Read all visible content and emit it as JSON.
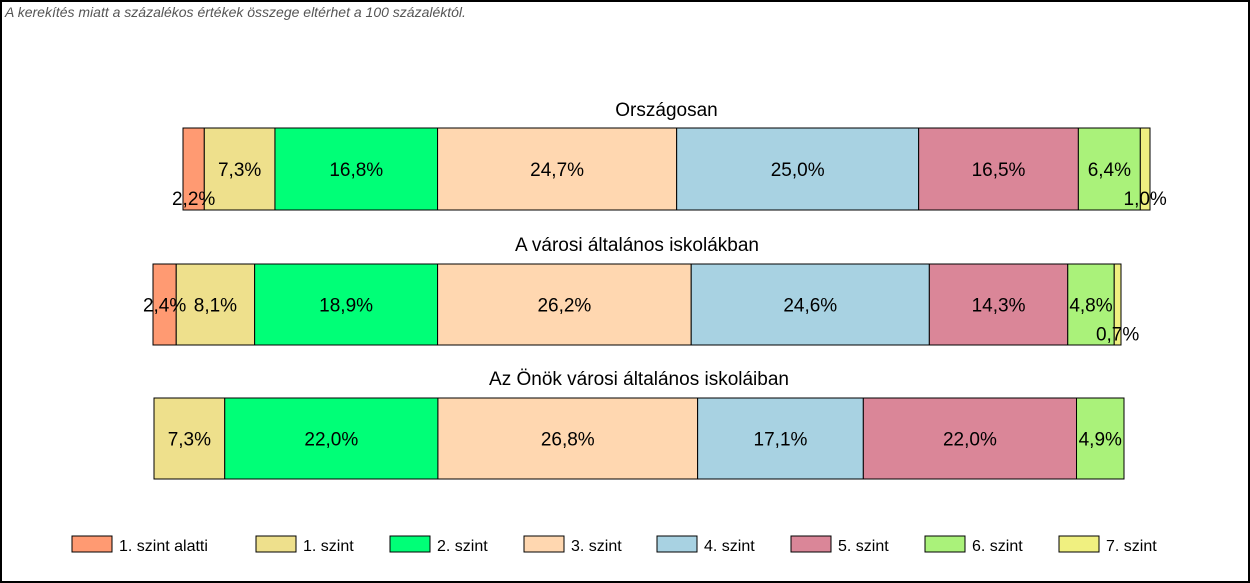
{
  "note": "A kerekítés miatt a  százalékos értékek összege eltérhet a 100 százaléktól.",
  "chart_data": {
    "type": "bar",
    "orientation": "horizontal-stacked-100",
    "categories": [
      "Országosan",
      "A városi általános iskolákban",
      "Az Önök városi általános iskoláiban"
    ],
    "series": [
      {
        "name": "1. szint alatti",
        "color": "#FF9A72",
        "values": [
          2.2,
          2.4,
          0
        ],
        "labels": [
          "2,2%",
          "2,4%",
          ""
        ]
      },
      {
        "name": "1. szint",
        "color": "#EEE08C",
        "values": [
          7.3,
          8.1,
          7.3
        ],
        "labels": [
          "7,3%",
          "8,1%",
          "7,3%"
        ]
      },
      {
        "name": "2. szint",
        "color": "#00FF77",
        "values": [
          16.8,
          18.9,
          22.0
        ],
        "labels": [
          "16,8%",
          "18,9%",
          "22,0%"
        ]
      },
      {
        "name": "3. szint",
        "color": "#FFD7B0",
        "values": [
          24.7,
          26.2,
          26.8
        ],
        "labels": [
          "24,7%",
          "26,2%",
          "26,8%"
        ]
      },
      {
        "name": "4. szint",
        "color": "#A8D2E2",
        "values": [
          25.0,
          24.6,
          17.1
        ],
        "labels": [
          "25,0%",
          "24,6%",
          "17,1%"
        ]
      },
      {
        "name": "5. szint",
        "color": "#DA8698",
        "values": [
          16.5,
          14.3,
          22.0
        ],
        "labels": [
          "16,5%",
          "14,3%",
          "22,0%"
        ]
      },
      {
        "name": "6. szint",
        "color": "#AAF27A",
        "values": [
          6.4,
          4.8,
          4.9
        ],
        "labels": [
          "6,4%",
          "4,8%",
          "4,9%"
        ]
      },
      {
        "name": "7. szint",
        "color": "#F0F080",
        "values": [
          1.0,
          0.7,
          0
        ],
        "labels": [
          "1,0%",
          "0,7%",
          ""
        ]
      }
    ],
    "legend_position": "bottom"
  }
}
